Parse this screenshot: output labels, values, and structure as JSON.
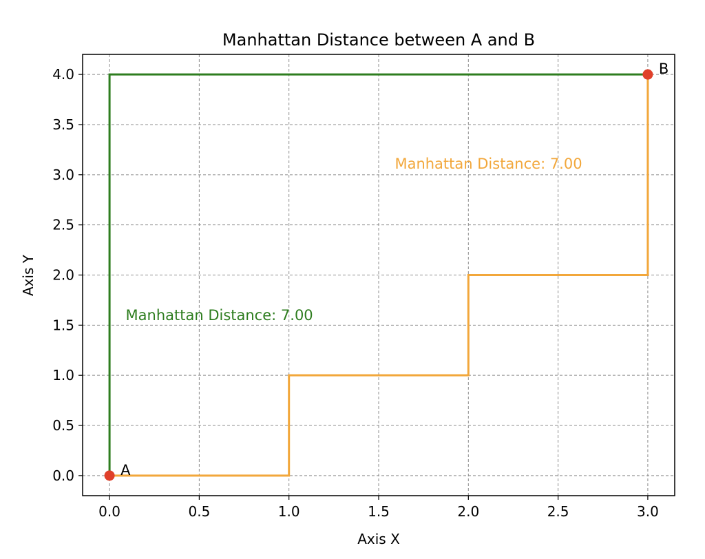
{
  "chart_data": {
    "type": "line",
    "title": "Manhattan Distance between A and B",
    "xlabel": "Axis X",
    "ylabel": "Axis Y",
    "xlim": [
      -0.15,
      3.15
    ],
    "ylim": [
      -0.2,
      4.2
    ],
    "x_ticks": [
      0.0,
      0.5,
      1.0,
      1.5,
      2.0,
      2.5,
      3.0
    ],
    "x_tick_labels": [
      "0.0",
      "0.5",
      "1.0",
      "1.5",
      "2.0",
      "2.5",
      "3.0"
    ],
    "y_ticks": [
      0.0,
      0.5,
      1.0,
      1.5,
      2.0,
      2.5,
      3.0,
      3.5,
      4.0
    ],
    "y_tick_labels": [
      "0.0",
      "0.5",
      "1.0",
      "1.5",
      "2.0",
      "2.5",
      "3.0",
      "3.5",
      "4.0"
    ],
    "grid": true,
    "series": [
      {
        "color": "#2e7d1f",
        "x": [
          0,
          0,
          3
        ],
        "y": [
          0,
          4,
          4
        ]
      },
      {
        "color": "#f2a73b",
        "x": [
          0,
          1,
          1,
          2,
          2,
          3,
          3
        ],
        "y": [
          0,
          0,
          1,
          1,
          2,
          2,
          4
        ]
      }
    ],
    "points": [
      {
        "label": "A",
        "x": 0,
        "y": 0,
        "color": "#e0402a"
      },
      {
        "label": "B",
        "x": 3,
        "y": 4,
        "color": "#e0402a"
      }
    ],
    "annotations": [
      {
        "text": "Manhattan Distance: 7.00",
        "x": 0.09,
        "y": 1.55,
        "color": "#2e7d1f"
      },
      {
        "text": "Manhattan Distance: 7.00",
        "x": 1.59,
        "y": 3.06,
        "color": "#f2a73b"
      }
    ]
  }
}
